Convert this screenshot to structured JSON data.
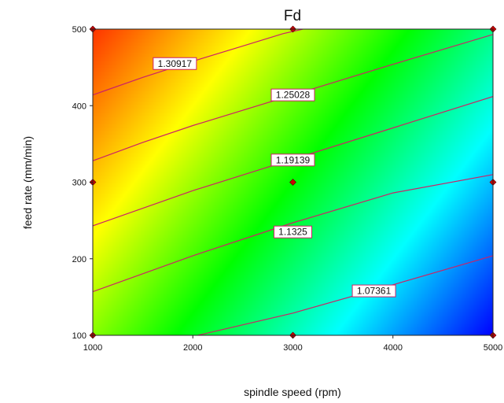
{
  "chart_data": {
    "type": "heatmap",
    "subtype": "contour",
    "title": "Fd",
    "xlabel": "spindle speed (rpm)",
    "ylabel": "feed rate (mm/min)",
    "xlim": [
      1000,
      5000
    ],
    "ylim": [
      100,
      500
    ],
    "x_ticks": [
      1000,
      2000,
      3000,
      4000,
      5000
    ],
    "y_ticks": [
      100,
      200,
      300,
      400,
      500
    ],
    "grid": false,
    "colormap": [
      "#0000ff",
      "#00ffff",
      "#00ff00",
      "#ffff00",
      "#ff3300"
    ],
    "contour_color": "#cc2266",
    "point_color": "#cc0000",
    "z_range": [
      1.01,
      1.37
    ],
    "contours": [
      {
        "level": "1.30917",
        "points": [
          [
            1000,
            414
          ],
          [
            1500,
            437
          ],
          [
            2000,
            458
          ],
          [
            2500,
            478
          ],
          [
            2900,
            494
          ],
          [
            3100,
            500
          ]
        ]
      },
      {
        "level": "1.25028",
        "points": [
          [
            1000,
            328
          ],
          [
            1500,
            352
          ],
          [
            2000,
            374
          ],
          [
            3000,
            414
          ],
          [
            4000,
            454
          ],
          [
            5000,
            493
          ]
        ]
      },
      {
        "level": "1.19139",
        "points": [
          [
            1000,
            243
          ],
          [
            2000,
            289
          ],
          [
            3000,
            330
          ],
          [
            4000,
            371
          ],
          [
            5000,
            412
          ]
        ]
      },
      {
        "level": "1.1325",
        "points": [
          [
            1000,
            157
          ],
          [
            2000,
            204
          ],
          [
            3000,
            247
          ],
          [
            4000,
            286
          ],
          [
            5000,
            310
          ]
        ]
      },
      {
        "level": "1.07361",
        "points": [
          [
            2050,
            100
          ],
          [
            3000,
            129
          ],
          [
            4000,
            166
          ],
          [
            5000,
            204
          ]
        ]
      }
    ],
    "contour_labels": [
      {
        "text": "1.30917",
        "x": 1820,
        "y": 455
      },
      {
        "text": "1.25028",
        "x": 3000,
        "y": 414
      },
      {
        "text": "1.19139",
        "x": 3000,
        "y": 329
      },
      {
        "text": "1.1325",
        "x": 3000,
        "y": 235
      },
      {
        "text": "1.07361",
        "x": 3810,
        "y": 158
      }
    ],
    "design_points": [
      {
        "x": 1000,
        "y": 100
      },
      {
        "x": 1000,
        "y": 300
      },
      {
        "x": 1000,
        "y": 500
      },
      {
        "x": 3000,
        "y": 100
      },
      {
        "x": 3000,
        "y": 300
      },
      {
        "x": 3000,
        "y": 500
      },
      {
        "x": 5000,
        "y": 100
      },
      {
        "x": 5000,
        "y": 300
      },
      {
        "x": 5000,
        "y": 500
      }
    ]
  }
}
